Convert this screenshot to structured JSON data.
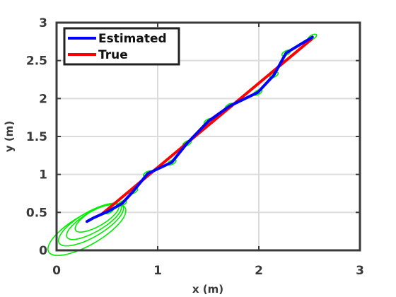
{
  "chart_data": {
    "type": "line",
    "xlabel": "x (m)",
    "ylabel": "y (m)",
    "xlim": [
      0,
      3
    ],
    "ylim": [
      0,
      3
    ],
    "x_ticks": [
      "0",
      "1",
      "2",
      "3"
    ],
    "y_ticks": [
      "0",
      "0.5",
      "1",
      "1.5",
      "2",
      "2.5",
      "3"
    ],
    "x_tick_values": [
      0,
      1,
      2,
      3
    ],
    "y_tick_values": [
      0,
      0.5,
      1,
      1.5,
      2,
      2.5,
      3
    ],
    "grid": true,
    "legend_position": "top-left",
    "series": [
      {
        "name": "Estimated",
        "color": "#0000ff",
        "x": [
          0.3,
          0.37,
          0.52,
          0.65,
          0.76,
          0.9,
          1.14,
          1.29,
          1.5,
          1.71,
          1.99,
          2.15,
          2.27,
          2.53
        ],
        "y": [
          0.38,
          0.43,
          0.52,
          0.62,
          0.78,
          1.01,
          1.16,
          1.41,
          1.7,
          1.9,
          2.08,
          2.31,
          2.6,
          2.81
        ]
      },
      {
        "name": "True",
        "color": "#ff0000",
        "x": [
          0.45,
          2.52
        ],
        "y": [
          0.48,
          2.78
        ]
      }
    ],
    "uncertainty_ellipses": {
      "color": "#00ee00",
      "centers_x": [
        0.3,
        0.34,
        0.37,
        0.4,
        0.52,
        0.65,
        0.76,
        0.9,
        1.14,
        1.29,
        1.5,
        1.71,
        1.99,
        2.15,
        2.27,
        2.53
      ],
      "centers_y": [
        0.27,
        0.34,
        0.38,
        0.43,
        0.52,
        0.62,
        0.78,
        1.01,
        1.16,
        1.41,
        1.7,
        1.9,
        2.08,
        2.31,
        2.6,
        2.81
      ],
      "semi_major": [
        0.48,
        0.4,
        0.34,
        0.27,
        0.05,
        0.05,
        0.05,
        0.05,
        0.05,
        0.05,
        0.05,
        0.05,
        0.05,
        0.05,
        0.05,
        0.05
      ],
      "semi_minor": [
        0.18,
        0.15,
        0.12,
        0.1,
        0.025,
        0.025,
        0.025,
        0.025,
        0.025,
        0.025,
        0.025,
        0.025,
        0.025,
        0.025,
        0.025,
        0.025
      ],
      "angle_deg": [
        40,
        40,
        40,
        40,
        40,
        40,
        40,
        40,
        40,
        40,
        40,
        40,
        40,
        40,
        40,
        40
      ]
    }
  }
}
